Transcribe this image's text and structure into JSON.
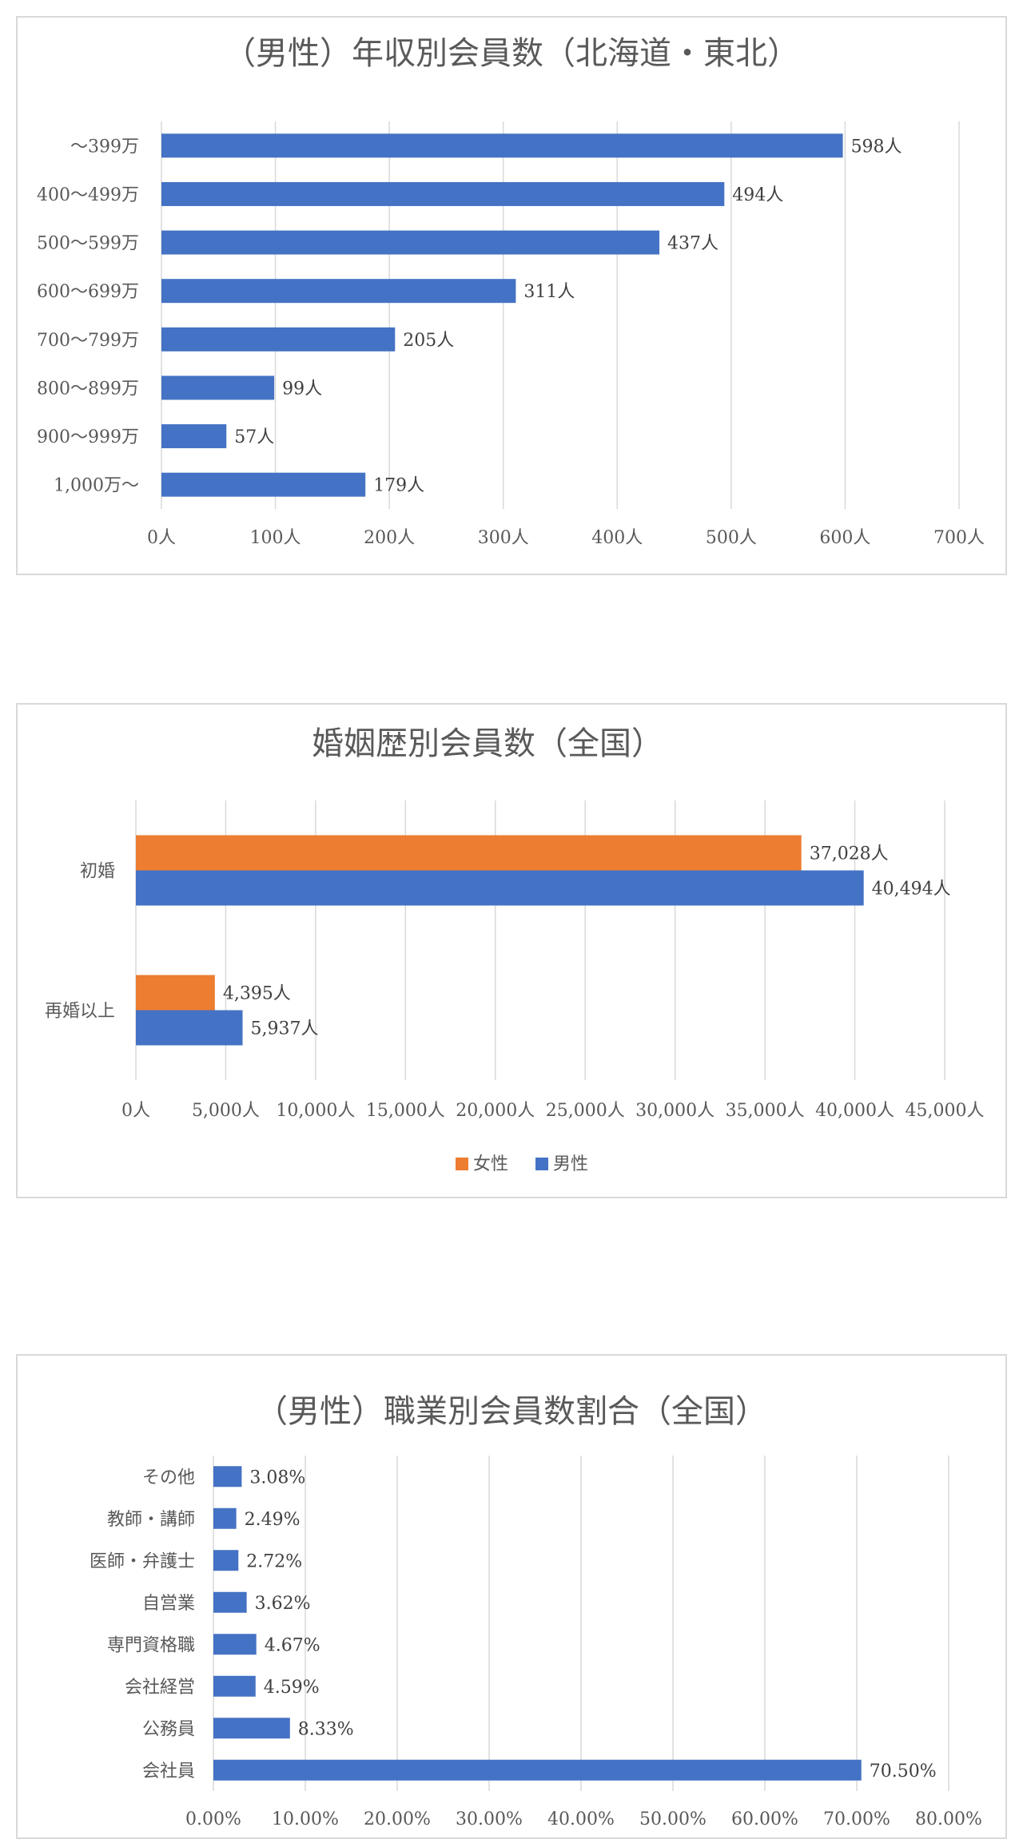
{
  "chart_data": [
    {
      "type": "bar",
      "orientation": "horizontal",
      "title": "（男性）年収別会員数（北海道・東北）",
      "categories": [
        "～399万",
        "400～499万",
        "500～599万",
        "600～699万",
        "700～799万",
        "800～899万",
        "900～999万",
        "1,000万～"
      ],
      "series": [
        {
          "values": [
            598,
            494,
            437,
            311,
            205,
            99,
            57,
            179
          ],
          "color": "#4472c4"
        }
      ],
      "data_labels": [
        "598人",
        "494人",
        "437人",
        "311人",
        "205人",
        "99人",
        "57人",
        "179人"
      ],
      "xlim": [
        0,
        700
      ],
      "ticks": [
        0,
        100,
        200,
        300,
        400,
        500,
        600,
        700
      ],
      "tick_labels": [
        "0人",
        "100人",
        "200人",
        "300人",
        "400人",
        "500人",
        "600人",
        "700人"
      ],
      "grid": true,
      "legend": "none"
    },
    {
      "type": "bar",
      "orientation": "horizontal",
      "title": "婚姻歴別会員数（全国）",
      "categories": [
        "初婚",
        "再婚以上"
      ],
      "series": [
        {
          "name": "女性",
          "values": [
            37028,
            4395
          ],
          "labels": [
            "37,028人",
            "4,395人"
          ],
          "color": "#ed7d31"
        },
        {
          "name": "男性",
          "values": [
            40494,
            5937
          ],
          "labels": [
            "40,494人",
            "5,937人"
          ],
          "color": "#4472c4"
        }
      ],
      "xlim": [
        0,
        45000
      ],
      "ticks": [
        0,
        5000,
        10000,
        15000,
        20000,
        25000,
        30000,
        35000,
        40000,
        45000
      ],
      "tick_labels": [
        "0人",
        "5,000人",
        "10,000人",
        "15,000人",
        "20,000人",
        "25,000人",
        "30,000人",
        "35,000人",
        "40,000人",
        "45,000人"
      ],
      "grid": true,
      "legend": "bottom"
    },
    {
      "type": "bar",
      "orientation": "horizontal",
      "title": "（男性）職業別会員数割合（全国）",
      "categories": [
        "その他",
        "教師・講師",
        "医師・弁護士",
        "自営業",
        "専門資格職",
        "会社経営",
        "公務員",
        "会社員"
      ],
      "series": [
        {
          "values": [
            3.08,
            2.49,
            2.72,
            3.62,
            4.67,
            4.59,
            8.33,
            70.5
          ],
          "color": "#4472c4"
        }
      ],
      "data_labels": [
        "3.08%",
        "2.49%",
        "2.72%",
        "3.62%",
        "4.67%",
        "4.59%",
        "8.33%",
        "70.50%"
      ],
      "xlim": [
        0,
        80
      ],
      "ticks": [
        0,
        10,
        20,
        30,
        40,
        50,
        60,
        70,
        80
      ],
      "tick_labels": [
        "0.00%",
        "10.00%",
        "20.00%",
        "30.00%",
        "40.00%",
        "50.00%",
        "60.00%",
        "70.00%",
        "80.00%"
      ],
      "grid": true,
      "legend": "none"
    }
  ]
}
